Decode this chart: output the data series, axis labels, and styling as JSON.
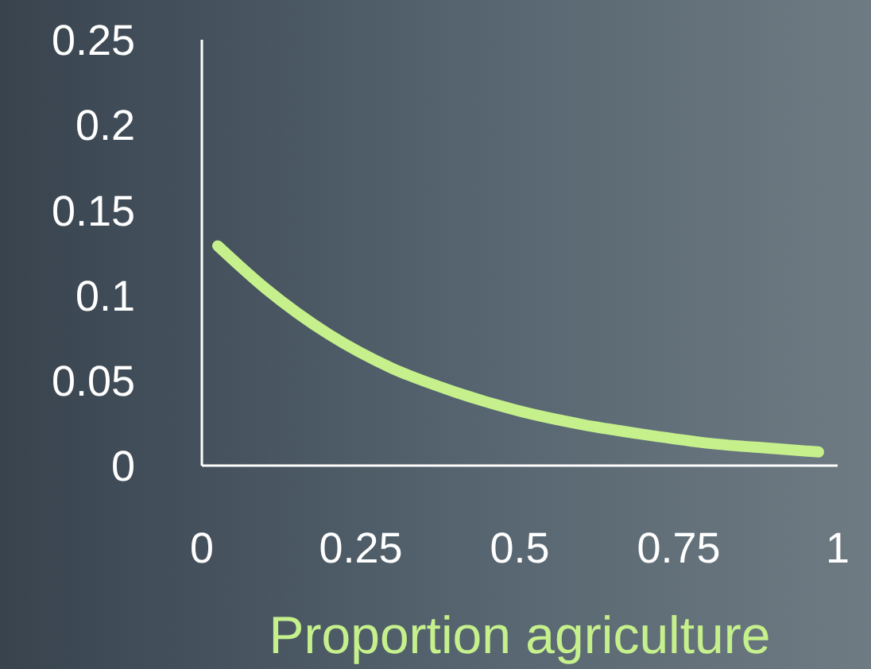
{
  "chart_data": {
    "type": "line",
    "xlabel": "Proportion agriculture",
    "x": [
      0.025,
      0.1,
      0.2,
      0.3,
      0.4,
      0.5,
      0.6,
      0.7,
      0.8,
      0.9,
      0.97
    ],
    "series": [
      {
        "color": "#c6f08c",
        "values": [
          0.129,
          0.104,
          0.077,
          0.057,
          0.043,
          0.032,
          0.024,
          0.018,
          0.013,
          0.01,
          0.008
        ]
      }
    ],
    "xlim": [
      0,
      1
    ],
    "xticks": [
      0,
      0.25,
      0.5,
      0.75,
      1
    ],
    "ylim": [
      0,
      0.25
    ],
    "yticks": [
      0,
      0.05,
      0.1,
      0.15,
      0.2,
      0.25
    ],
    "grid": false,
    "legend": false,
    "marker": "none",
    "line_style": "solid"
  }
}
